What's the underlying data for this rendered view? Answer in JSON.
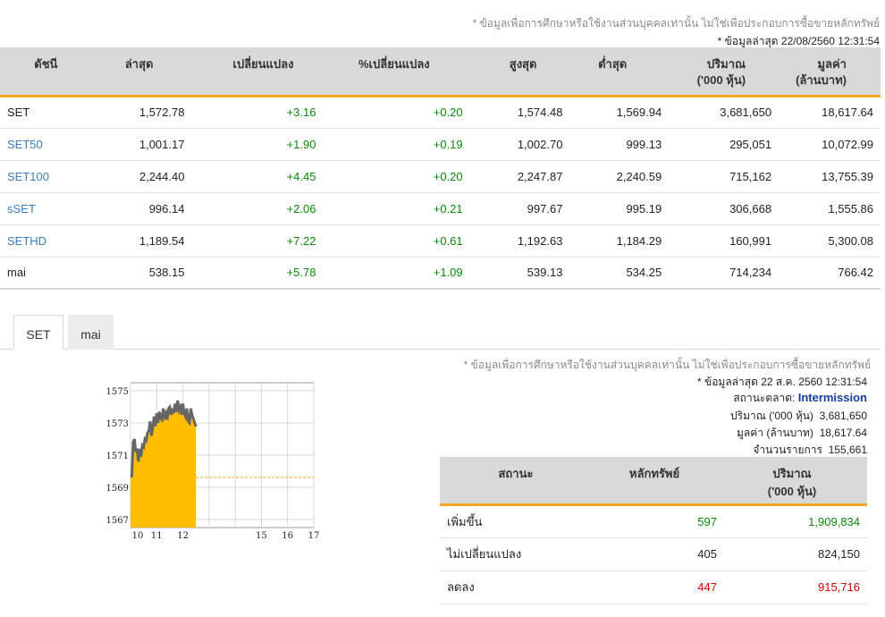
{
  "disclaimer": "* ข้อมูลเพื่อการศึกษาหรือใช้งานส่วนบุคคลเท่านั้น ไม่ใช่เพื่อประกอบการซื้อขายหลักทรัพย์",
  "last_updated": "* ข้อมูลล่าสุด 22/08/2560 12:31:54",
  "index_table": {
    "headers": [
      "ดัชนี",
      "ล่าสุด",
      "เปลี่ยนแปลง",
      "%เปลี่ยนแปลง",
      "สูงสุด",
      "ต่ำสุด",
      "ปริมาณ\n('000 หุ้น)",
      "มูลค่า\n(ล้านบาท)"
    ],
    "rows": [
      {
        "name": "SET",
        "last": "1,572.78",
        "change": "+3.16",
        "pct": "+0.20",
        "high": "1,574.48",
        "low": "1,569.94",
        "volume": "3,681,650",
        "value": "18,617.64"
      },
      {
        "name": "SET50",
        "last": "1,001.17",
        "change": "+1.90",
        "pct": "+0.19",
        "high": "1,002.70",
        "low": "999.13",
        "volume": "295,051",
        "value": "10,072.99"
      },
      {
        "name": "SET100",
        "last": "2,244.40",
        "change": "+4.45",
        "pct": "+0.20",
        "high": "2,247.87",
        "low": "2,240.59",
        "volume": "715,162",
        "value": "13,755.39"
      },
      {
        "name": "sSET",
        "last": "996.14",
        "change": "+2.06",
        "pct": "+0.21",
        "high": "997.67",
        "low": "995.19",
        "volume": "306,668",
        "value": "1,555.86"
      },
      {
        "name": "SETHD",
        "last": "1,189.54",
        "change": "+7.22",
        "pct": "+0.61",
        "high": "1,192.63",
        "low": "1,184.29",
        "volume": "160,991",
        "value": "5,300.08"
      },
      {
        "name": "mai",
        "last": "538.15",
        "change": "+5.78",
        "pct": "+1.09",
        "high": "539.13",
        "low": "534.25",
        "volume": "714,234",
        "value": "766.42"
      }
    ]
  },
  "tabs": [
    "SET",
    "mai"
  ],
  "market_info": {
    "disclaimer": "* ข้อมูลเพื่อการศึกษาหรือใช้งานส่วนบุคคลเท่านั้น ไม่ใช่เพื่อประกอบการซื้อขายหลักทรัพย์",
    "updated": "* ข้อมูลล่าสุด 22 ส.ค. 2560 12:31:54",
    "status_label": "สถานะตลาด:",
    "status_value": "Intermission",
    "volume_label": "ปริมาณ ('000 หุ้น)",
    "volume_value": "3,681,650",
    "value_label": "มูลค่า (ล้านบาท)",
    "value_value": "18,617.64",
    "deals_label": "จำนวนรายการ",
    "deals_value": "155,661"
  },
  "status_table": {
    "headers": [
      "สถานะ",
      "หลักทรัพย์",
      "ปริมาณ\n('000 หุ้น)"
    ],
    "rows": [
      {
        "label": "เพิ่มขึ้น",
        "count": "597",
        "volume": "1,909,834",
        "color": "#0a8a0a"
      },
      {
        "label": "ไม่เปลี่ยนแปลง",
        "count": "405",
        "volume": "824,150",
        "color": "#222222"
      },
      {
        "label": "ลดลง",
        "count": "447",
        "volume": "915,716",
        "color": "#d00000"
      }
    ]
  },
  "chart_data": {
    "type": "area",
    "x_ticks": [
      "10",
      "11",
      "12",
      "15",
      "16",
      "17"
    ],
    "y_ticks": [
      "1575",
      "1573",
      "1571",
      "1569",
      "1567"
    ],
    "ylim": [
      1566.5,
      1575.5
    ],
    "xlim": [
      10,
      17
    ],
    "previous_close": 1569.62,
    "fill_color": "#ffbf00",
    "line_color": "#666666",
    "ref_line_color": "#f5a623",
    "x": [
      10.0,
      10.05,
      10.1,
      10.15,
      10.2,
      10.25,
      10.3,
      10.35,
      10.4,
      10.45,
      10.5,
      10.55,
      10.6,
      10.65,
      10.7,
      10.75,
      10.8,
      10.85,
      10.9,
      10.95,
      11.0,
      11.05,
      11.1,
      11.15,
      11.2,
      11.25,
      11.3,
      11.35,
      11.4,
      11.45,
      11.5,
      11.55,
      11.6,
      11.65,
      11.7,
      11.75,
      11.8,
      11.85,
      11.9,
      11.95,
      12.0,
      12.05,
      12.1,
      12.15,
      12.2,
      12.25,
      12.3,
      12.35,
      12.5
    ],
    "y": [
      1569.7,
      1569.7,
      1571.8,
      1572.0,
      1571.2,
      1571.4,
      1570.6,
      1571.4,
      1570.9,
      1571.6,
      1571.5,
      1572.0,
      1571.9,
      1572.4,
      1572.5,
      1573.1,
      1572.2,
      1572.7,
      1573.4,
      1572.8,
      1573.6,
      1573.0,
      1573.7,
      1573.3,
      1573.2,
      1573.9,
      1573.4,
      1573.6,
      1573.2,
      1573.9,
      1574.0,
      1573.5,
      1573.9,
      1573.6,
      1574.2,
      1573.7,
      1574.4,
      1573.8,
      1574.0,
      1573.5,
      1574.2,
      1573.6,
      1573.4,
      1573.9,
      1573.1,
      1573.0,
      1573.9,
      1573.5,
      1572.78
    ]
  }
}
